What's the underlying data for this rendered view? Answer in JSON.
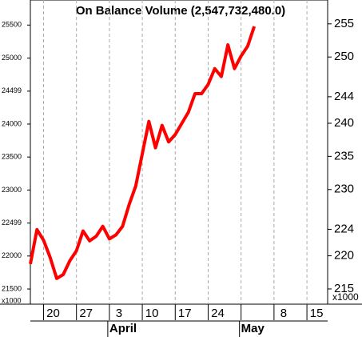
{
  "chart_data": {
    "type": "line",
    "title": "On Balance Volume (2,547,732,480.0)",
    "categories": [
      null,
      null,
      "20",
      null,
      null,
      null,
      null,
      "27",
      null,
      null,
      null,
      null,
      "3",
      null,
      null,
      null,
      null,
      "10",
      null,
      null,
      null,
      null,
      "17",
      null,
      null,
      null,
      null,
      "24",
      null,
      null,
      null,
      null,
      null,
      null,
      null,
      null,
      null,
      "8",
      null,
      null,
      null,
      null,
      "15",
      null,
      null
    ],
    "months": [
      null,
      null,
      null,
      null,
      null,
      null,
      null,
      null,
      null,
      null,
      null,
      null,
      "April",
      null,
      null,
      null,
      null,
      null,
      null,
      null,
      null,
      null,
      null,
      null,
      null,
      null,
      null,
      null,
      null,
      null,
      null,
      null,
      "May",
      null,
      null,
      null,
      null,
      null,
      null,
      null,
      null,
      null,
      null,
      null,
      null
    ],
    "series": [
      {
        "color": "#ff0000",
        "values": [
          21880,
          22400,
          22240,
          21980,
          21660,
          21720,
          21930,
          22080,
          22380,
          22230,
          22300,
          22450,
          22260,
          22320,
          22450,
          22780,
          23060,
          23550,
          24040,
          23640,
          23980,
          23730,
          23840,
          24010,
          24180,
          24460,
          24460,
          24600,
          24840,
          24720,
          25200,
          24840,
          25030,
          25180,
          25480,
          null,
          null,
          null,
          null,
          null,
          null,
          null,
          null,
          null,
          null
        ]
      }
    ],
    "ylim": [
      21270,
      25880
    ],
    "yticks": [
      21500,
      22000,
      22499,
      23000,
      23500,
      24000,
      24499,
      25000,
      25500
    ],
    "y2lim": [
      212.7,
      258.6
    ],
    "y2ticks": [
      215,
      220,
      224,
      230,
      235,
      240,
      244,
      250,
      255
    ],
    "y_unit": "x1000",
    "y2_unit": "x1000",
    "grid": true
  }
}
